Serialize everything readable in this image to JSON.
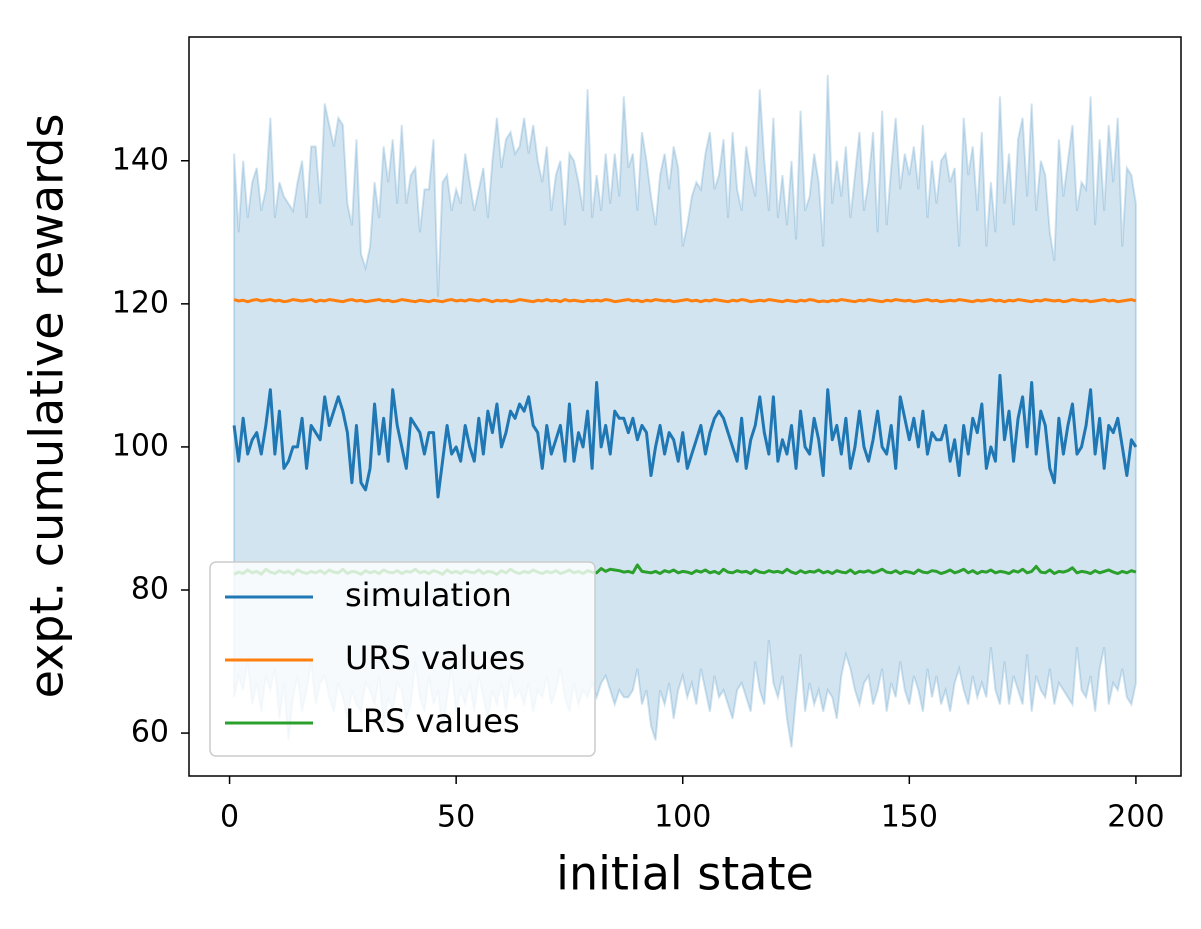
{
  "chart_data": {
    "type": "line",
    "xlabel": "initial state",
    "ylabel": "expt. cumulative rewards",
    "xlim": [
      -8.95,
      209.95
    ],
    "ylim": [
      54.0,
      157.3
    ],
    "xticks": [
      0,
      50,
      100,
      150,
      200
    ],
    "yticks": [
      60,
      80,
      100,
      120,
      140
    ],
    "legend": "lower left",
    "grid": false,
    "x": [
      1,
      2,
      3,
      4,
      5,
      6,
      7,
      8,
      9,
      10,
      11,
      12,
      13,
      14,
      15,
      16,
      17,
      18,
      19,
      20,
      21,
      22,
      23,
      24,
      25,
      26,
      27,
      28,
      29,
      30,
      31,
      32,
      33,
      34,
      35,
      36,
      37,
      38,
      39,
      40,
      41,
      42,
      43,
      44,
      45,
      46,
      47,
      48,
      49,
      50,
      51,
      52,
      53,
      54,
      55,
      56,
      57,
      58,
      59,
      60,
      61,
      62,
      63,
      64,
      65,
      66,
      67,
      68,
      69,
      70,
      71,
      72,
      73,
      74,
      75,
      76,
      77,
      78,
      79,
      80,
      81,
      82,
      83,
      84,
      85,
      86,
      87,
      88,
      89,
      90,
      91,
      92,
      93,
      94,
      95,
      96,
      97,
      98,
      99,
      100,
      101,
      102,
      103,
      104,
      105,
      106,
      107,
      108,
      109,
      110,
      111,
      112,
      113,
      114,
      115,
      116,
      117,
      118,
      119,
      120,
      121,
      122,
      123,
      124,
      125,
      126,
      127,
      128,
      129,
      130,
      131,
      132,
      133,
      134,
      135,
      136,
      137,
      138,
      139,
      140,
      141,
      142,
      143,
      144,
      145,
      146,
      147,
      148,
      149,
      150,
      151,
      152,
      153,
      154,
      155,
      156,
      157,
      158,
      159,
      160,
      161,
      162,
      163,
      164,
      165,
      166,
      167,
      168,
      169,
      170,
      171,
      172,
      173,
      174,
      175,
      176,
      177,
      178,
      179,
      180,
      181,
      182,
      183,
      184,
      185,
      186,
      187,
      188,
      189,
      190,
      191,
      192,
      193,
      194,
      195,
      196,
      197,
      198,
      199,
      200
    ],
    "band": {
      "color": "#1f77b4",
      "upper": [
        141,
        130,
        140,
        132,
        137,
        139,
        133,
        136,
        146,
        132,
        137,
        135,
        134,
        133,
        137,
        140,
        132,
        142,
        142,
        134,
        148,
        145,
        142,
        146,
        145,
        134,
        131,
        143,
        127,
        125,
        128,
        137,
        132,
        142,
        137,
        143,
        134,
        145,
        134,
        138,
        139,
        130,
        136,
        136,
        143,
        121,
        137,
        138,
        133,
        136,
        134,
        141,
        137,
        133,
        136,
        139,
        132,
        140,
        146,
        139,
        143,
        144,
        141,
        142,
        146,
        141,
        145,
        140,
        137,
        142,
        133,
        138,
        140,
        131,
        141,
        140,
        137,
        133,
        150,
        132,
        138,
        133,
        141,
        134,
        141,
        135,
        149,
        139,
        141,
        133,
        144,
        140,
        135,
        131,
        138,
        141,
        136,
        142,
        139,
        128,
        131,
        135,
        137,
        136,
        141,
        144,
        136,
        138,
        143,
        132,
        144,
        136,
        133,
        142,
        138,
        135,
        150,
        140,
        133,
        146,
        132,
        138,
        131,
        140,
        129,
        147,
        133,
        135,
        141,
        137,
        128,
        152,
        134,
        140,
        135,
        142,
        132,
        138,
        144,
        133,
        137,
        144,
        130,
        147,
        131,
        139,
        146,
        136,
        141,
        138,
        142,
        136,
        145,
        132,
        140,
        134,
        140,
        141,
        137,
        139,
        128,
        146,
        138,
        142,
        133,
        144,
        128,
        137,
        130,
        149,
        134,
        141,
        131,
        143,
        146,
        135,
        148,
        133,
        140,
        138,
        130,
        126,
        143,
        135,
        140,
        145,
        133,
        137,
        136,
        149,
        131,
        143,
        133,
        145,
        137,
        146,
        128,
        139,
        138,
        134
      ],
      "lower": [
        65,
        68,
        66,
        70,
        64,
        67,
        63,
        68,
        66,
        69,
        62,
        67,
        59,
        65,
        68,
        63,
        66,
        70,
        64,
        67,
        68,
        65,
        63,
        67,
        65,
        62,
        66,
        64,
        63,
        67,
        66,
        64,
        68,
        61,
        65,
        63,
        67,
        66,
        62,
        64,
        70,
        65,
        63,
        68,
        64,
        66,
        60,
        65,
        69,
        63,
        66,
        64,
        67,
        63,
        68,
        65,
        62,
        66,
        64,
        67,
        63,
        68,
        65,
        66,
        64,
        67,
        63,
        66,
        65,
        68,
        64,
        66,
        69,
        65,
        63,
        67,
        64,
        66,
        65,
        67,
        65,
        67,
        68,
        66,
        64,
        66,
        65,
        65,
        66,
        69,
        64,
        66,
        61,
        59,
        66,
        64,
        67,
        62,
        66,
        68,
        65,
        67,
        64,
        69,
        66,
        63,
        68,
        65,
        66,
        64,
        62,
        66,
        67,
        65,
        63,
        70,
        66,
        64,
        73,
        67,
        65,
        68,
        62,
        58,
        65,
        71,
        63,
        67,
        64,
        66,
        63,
        66,
        65,
        62,
        68,
        71,
        69,
        66,
        64,
        67,
        68,
        64,
        66,
        69,
        63,
        67,
        65,
        70,
        66,
        64,
        68,
        66,
        63,
        69,
        65,
        68,
        64,
        66,
        63,
        67,
        69,
        66,
        64,
        68,
        65,
        67,
        65,
        72,
        66,
        64,
        70,
        64,
        68,
        66,
        64,
        71,
        63,
        68,
        66,
        65,
        69,
        64,
        67,
        66,
        65,
        64,
        72,
        66,
        65,
        68,
        63,
        69,
        72,
        64,
        67,
        66,
        69,
        65,
        64,
        67
      ]
    },
    "series": [
      {
        "name": "simulation",
        "color": "#1f77b4",
        "values": [
          103,
          98,
          104,
          99,
          101,
          102,
          99,
          103,
          108,
          99,
          105,
          97,
          98,
          100,
          100,
          104,
          97,
          103,
          102,
          101,
          107,
          103,
          105,
          107,
          105,
          102,
          95,
          103,
          95,
          94,
          97,
          106,
          99,
          104,
          98,
          108,
          103,
          100,
          97,
          104,
          103,
          102,
          99,
          102,
          102,
          93,
          98,
          103,
          99,
          100,
          98,
          103,
          100,
          98,
          104,
          99,
          105,
          102,
          106,
          100,
          102,
          105,
          104,
          106,
          105,
          107,
          103,
          102,
          97,
          103,
          99,
          101,
          103,
          98,
          106,
          98,
          102,
          100,
          105,
          97,
          109,
          100,
          103,
          99,
          105,
          104,
          104,
          102,
          104,
          101,
          103,
          102,
          96,
          100,
          103,
          99,
          102,
          101,
          98,
          102,
          97,
          99,
          101,
          103,
          99,
          102,
          104,
          105,
          104,
          102,
          100,
          98,
          104,
          97,
          101,
          103,
          107,
          102,
          99,
          107,
          98,
          101,
          99,
          103,
          97,
          105,
          100,
          99,
          104,
          101,
          96,
          108,
          101,
          103,
          99,
          104,
          97,
          100,
          105,
          100,
          98,
          101,
          105,
          100,
          99,
          103,
          97,
          107,
          104,
          101,
          104,
          100,
          105,
          99,
          102,
          101,
          101,
          103,
          98,
          101,
          96,
          103,
          99,
          104,
          102,
          106,
          97,
          100,
          98,
          110,
          101,
          105,
          98,
          104,
          107,
          100,
          109,
          99,
          105,
          103,
          97,
          95,
          104,
          99,
          103,
          106,
          99,
          100,
          103,
          108,
          99,
          104,
          97,
          103,
          102,
          104,
          100,
          96,
          101,
          100
        ]
      },
      {
        "name": "URS values",
        "color": "#ff7f0e",
        "values": [
          120.6,
          120.4,
          120.5,
          120.3,
          120.5,
          120.6,
          120.4,
          120.5,
          120.6,
          120.4,
          120.5,
          120.3,
          120.4,
          120.6,
          120.5,
          120.4,
          120.5,
          120.6,
          120.3,
          120.5,
          120.4,
          120.6,
          120.5,
          120.4,
          120.3,
          120.5,
          120.6,
          120.4,
          120.5,
          120.3,
          120.4,
          120.5,
          120.6,
          120.4,
          120.5,
          120.3,
          120.4,
          120.6,
          120.5,
          120.4,
          120.3,
          120.5,
          120.4,
          120.3,
          120.5,
          120.4,
          120.3,
          120.5,
          120.6,
          120.4,
          120.5,
          120.4,
          120.6,
          120.5,
          120.4,
          120.6,
          120.5,
          120.3,
          120.5,
          120.4,
          120.5,
          120.3,
          120.4,
          120.6,
          120.5,
          120.4,
          120.3,
          120.5,
          120.4,
          120.6,
          120.4,
          120.5,
          120.3,
          120.6,
          120.4,
          120.5,
          120.4,
          120.3,
          120.5,
          120.4,
          120.5,
          120.4,
          120.6,
          120.5,
          120.3,
          120.4,
          120.5,
          120.6,
          120.4,
          120.5,
          120.3,
          120.5,
          120.4,
          120.6,
          120.5,
          120.4,
          120.5,
          120.3,
          120.4,
          120.5,
          120.6,
          120.4,
          120.5,
          120.3,
          120.5,
          120.4,
          120.6,
          120.5,
          120.4,
          120.3,
          120.5,
          120.4,
          120.6,
          120.5,
          120.3,
          120.4,
          120.5,
          120.4,
          120.6,
          120.5,
          120.4,
          120.3,
          120.5,
          120.4,
          120.3,
          120.5,
          120.4,
          120.6,
          120.5,
          120.3,
          120.4,
          120.3,
          120.5,
          120.4,
          120.6,
          120.5,
          120.4,
          120.3,
          120.5,
          120.4,
          120.6,
          120.5,
          120.4,
          120.3,
          120.5,
          120.4,
          120.6,
          120.5,
          120.4,
          120.5,
          120.3,
          120.4,
          120.5,
          120.6,
          120.4,
          120.5,
          120.3,
          120.4,
          120.5,
          120.4,
          120.6,
          120.5,
          120.4,
          120.3,
          120.5,
          120.4,
          120.5,
          120.6,
          120.4,
          120.5,
          120.3,
          120.5,
          120.4,
          120.6,
          120.5,
          120.4,
          120.3,
          120.5,
          120.4,
          120.6,
          120.5,
          120.4,
          120.5,
          120.3,
          120.4,
          120.6,
          120.5,
          120.4,
          120.5,
          120.3,
          120.4,
          120.5,
          120.6,
          120.4,
          120.5,
          120.3,
          120.4,
          120.5,
          120.6,
          120.4
        ]
      },
      {
        "name": "LRS values",
        "color": "#2ca02c",
        "values": [
          82.2,
          82.5,
          82.3,
          82.8,
          82.4,
          82.6,
          82.2,
          82.9,
          82.5,
          82.3,
          82.7,
          82.4,
          82.6,
          82.2,
          82.8,
          82.5,
          82.3,
          82.6,
          82.4,
          82.7,
          82.3,
          82.8,
          82.5,
          82.4,
          82.9,
          82.3,
          82.6,
          82.5,
          82.2,
          82.7,
          82.4,
          82.6,
          82.3,
          82.8,
          82.5,
          82.4,
          82.7,
          82.3,
          82.6,
          82.5,
          82.9,
          82.4,
          82.6,
          82.3,
          82.7,
          82.5,
          82.2,
          82.8,
          82.4,
          82.6,
          82.3,
          82.7,
          82.5,
          82.4,
          82.8,
          82.3,
          82.6,
          82.5,
          82.2,
          82.7,
          82.4,
          82.9,
          82.5,
          82.3,
          82.6,
          82.4,
          82.8,
          82.5,
          82.3,
          82.6,
          82.4,
          82.7,
          82.3,
          82.5,
          82.8,
          82.4,
          82.6,
          82.3,
          82.7,
          82.5,
          82.4,
          83.0,
          82.6,
          82.9,
          82.8,
          82.7,
          82.5,
          82.6,
          82.4,
          83.5,
          82.6,
          82.5,
          82.4,
          82.6,
          82.3,
          82.7,
          82.5,
          82.8,
          82.4,
          82.6,
          82.5,
          82.3,
          82.7,
          82.5,
          82.8,
          82.4,
          82.6,
          82.3,
          82.9,
          82.5,
          82.4,
          82.7,
          82.5,
          82.6,
          82.3,
          82.8,
          82.5,
          82.4,
          82.7,
          82.5,
          82.6,
          82.4,
          82.9,
          82.5,
          82.3,
          82.7,
          82.4,
          82.6,
          82.5,
          82.8,
          82.4,
          82.6,
          82.3,
          82.7,
          82.5,
          82.4,
          82.8,
          82.3,
          82.6,
          82.5,
          82.7,
          82.4,
          82.6,
          82.9,
          82.5,
          82.4,
          82.7,
          82.3,
          82.6,
          82.5,
          82.3,
          82.8,
          82.5,
          82.4,
          82.7,
          82.6,
          82.3,
          82.5,
          82.8,
          82.4,
          82.6,
          82.9,
          82.4,
          82.7,
          82.3,
          82.6,
          82.5,
          82.8,
          82.4,
          82.6,
          82.5,
          82.3,
          82.7,
          82.5,
          82.9,
          82.4,
          82.6,
          83.3,
          82.5,
          82.4,
          82.8,
          82.3,
          82.6,
          82.5,
          82.7,
          83.1,
          82.4,
          82.6,
          82.5,
          82.3,
          82.7,
          82.4,
          82.6,
          82.8,
          82.5,
          82.3,
          82.6,
          82.4,
          82.7,
          82.5
        ]
      }
    ]
  }
}
